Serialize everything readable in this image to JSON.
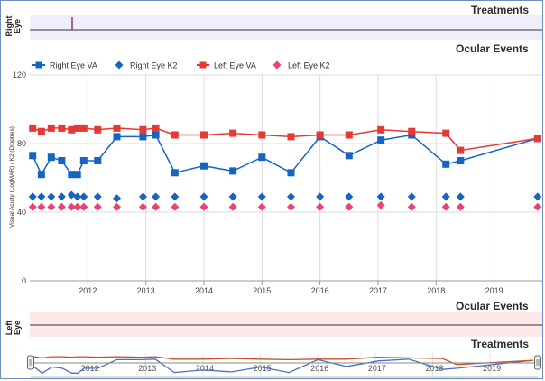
{
  "top_panel": {
    "title": "Treatments",
    "side_label_line1": "Right",
    "side_label_line2": "Eye",
    "marker_color": "#9c2a8c"
  },
  "events_panel_title": "Ocular Events",
  "bottom_panel": {
    "side_label_line1": "Left",
    "side_label_line2": "Eye",
    "events_title": "Ocular Events",
    "treatments_title": "Treatments"
  },
  "chart_data": {
    "type": "line",
    "ylabel": "Visual Acuity (LogMAR) / K2 (Dioptres)",
    "ylim": [
      0,
      120
    ],
    "yticks": [
      "0",
      "40",
      "80",
      "120"
    ],
    "xlim": [
      2011.0,
      2019.83
    ],
    "xticks": [
      "2012",
      "2013",
      "2014",
      "2015",
      "2016",
      "2017",
      "2018",
      "2019"
    ],
    "grid": true,
    "legend": "top-left",
    "series": [
      {
        "name": "Right Eye VA",
        "color": "#1565c0",
        "marker": "square",
        "line": true,
        "points": [
          [
            2011.05,
            73
          ],
          [
            2011.2,
            62
          ],
          [
            2011.37,
            72
          ],
          [
            2011.55,
            70
          ],
          [
            2011.72,
            62
          ],
          [
            2011.82,
            62
          ],
          [
            2011.93,
            70
          ],
          [
            2012.17,
            70
          ],
          [
            2012.5,
            84
          ],
          [
            2012.95,
            84
          ],
          [
            2013.17,
            85
          ],
          [
            2013.5,
            63
          ],
          [
            2014.0,
            67
          ],
          [
            2014.5,
            64
          ],
          [
            2015.0,
            72
          ],
          [
            2015.5,
            63
          ],
          [
            2016.0,
            84
          ],
          [
            2016.5,
            73
          ],
          [
            2017.05,
            82
          ],
          [
            2017.58,
            85
          ],
          [
            2018.17,
            68
          ],
          [
            2018.42,
            70
          ],
          [
            2019.75,
            83
          ]
        ]
      },
      {
        "name": "Right Eye K2",
        "color": "#1565c0",
        "marker": "diamond",
        "line": false,
        "points": [
          [
            2011.05,
            49
          ],
          [
            2011.2,
            49
          ],
          [
            2011.37,
            49
          ],
          [
            2011.55,
            49
          ],
          [
            2011.72,
            50
          ],
          [
            2011.82,
            49
          ],
          [
            2011.93,
            49
          ],
          [
            2012.17,
            49
          ],
          [
            2012.5,
            48
          ],
          [
            2012.95,
            49
          ],
          [
            2013.17,
            49
          ],
          [
            2013.5,
            49
          ],
          [
            2014.0,
            49
          ],
          [
            2014.5,
            49
          ],
          [
            2015.0,
            49
          ],
          [
            2015.5,
            49
          ],
          [
            2016.0,
            49
          ],
          [
            2016.5,
            49
          ],
          [
            2017.05,
            49
          ],
          [
            2017.58,
            49
          ],
          [
            2018.17,
            49
          ],
          [
            2018.42,
            49
          ],
          [
            2019.75,
            49
          ]
        ]
      },
      {
        "name": "Left Eye VA",
        "color": "#e53935",
        "marker": "square",
        "line": true,
        "points": [
          [
            2011.05,
            89
          ],
          [
            2011.2,
            87
          ],
          [
            2011.37,
            89
          ],
          [
            2011.55,
            89
          ],
          [
            2011.72,
            88
          ],
          [
            2011.82,
            89
          ],
          [
            2011.93,
            89
          ],
          [
            2012.17,
            88
          ],
          [
            2012.5,
            89
          ],
          [
            2012.95,
            88
          ],
          [
            2013.17,
            89
          ],
          [
            2013.5,
            85
          ],
          [
            2014.0,
            85
          ],
          [
            2014.5,
            86
          ],
          [
            2015.0,
            85
          ],
          [
            2015.5,
            84
          ],
          [
            2016.0,
            85
          ],
          [
            2016.5,
            85
          ],
          [
            2017.05,
            88
          ],
          [
            2017.58,
            87
          ],
          [
            2018.17,
            86
          ],
          [
            2018.42,
            76
          ],
          [
            2019.75,
            83
          ]
        ]
      },
      {
        "name": "Left Eye K2",
        "color": "#ec407a",
        "marker": "diamond",
        "line": false,
        "points": [
          [
            2011.05,
            43
          ],
          [
            2011.2,
            43
          ],
          [
            2011.37,
            43
          ],
          [
            2011.55,
            43
          ],
          [
            2011.72,
            43
          ],
          [
            2011.82,
            43
          ],
          [
            2011.93,
            43
          ],
          [
            2012.17,
            43
          ],
          [
            2012.5,
            43
          ],
          [
            2012.95,
            43
          ],
          [
            2013.17,
            43
          ],
          [
            2013.5,
            43
          ],
          [
            2014.0,
            43
          ],
          [
            2014.5,
            43
          ],
          [
            2015.0,
            43
          ],
          [
            2015.5,
            43
          ],
          [
            2016.0,
            43
          ],
          [
            2016.5,
            43
          ],
          [
            2017.05,
            44
          ],
          [
            2017.58,
            43
          ],
          [
            2018.17,
            43
          ],
          [
            2018.42,
            43
          ],
          [
            2019.75,
            43
          ]
        ]
      }
    ]
  },
  "navigator": {
    "xticks": [
      "2012",
      "2013",
      "2014",
      "2015",
      "2016",
      "2017",
      "2018",
      "2019"
    ]
  }
}
